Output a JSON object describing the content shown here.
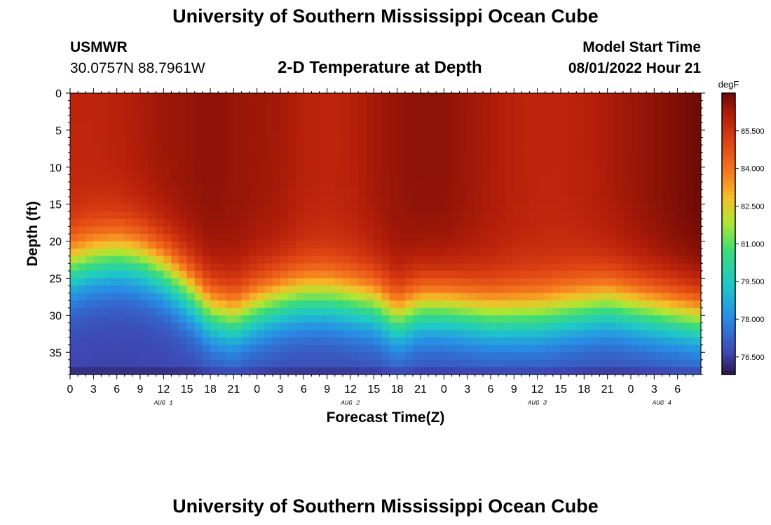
{
  "page": {
    "title": "University of Southern Mississippi Ocean Cube",
    "title_repeat": "University of Southern Mississippi Ocean Cube",
    "station": {
      "name": "USMWR",
      "coords": "30.0757N  88.7961W"
    },
    "model_start": {
      "label": "Model Start Time",
      "value": "08/01/2022 Hour 21"
    }
  },
  "chart_data": {
    "type": "heatmap",
    "title": "2-D Temperature at Depth",
    "xlabel": "Forecast Time(Z)",
    "ylabel": "Depth (ft)",
    "x_range": [
      0,
      81
    ],
    "y_range": [
      0,
      38
    ],
    "y_ticks": [
      "0",
      "5",
      "10",
      "15",
      "20",
      "25",
      "30",
      "35"
    ],
    "y_tick_values": [
      0,
      5,
      10,
      15,
      20,
      25,
      30,
      35
    ],
    "x_ticks": [
      "0",
      "3",
      "6",
      "9",
      "12",
      "15",
      "18",
      "21",
      "0",
      "3",
      "6",
      "9",
      "12",
      "15",
      "18",
      "21",
      "0",
      "3",
      "6",
      "9",
      "12",
      "15",
      "18",
      "21",
      "0",
      "3",
      "6"
    ],
    "date_labels": [
      {
        "label": "AUG 1",
        "hour": 12
      },
      {
        "label": "AUG 2",
        "hour": 36
      },
      {
        "label": "AUG 3",
        "hour": 60
      },
      {
        "label": "AUG 4",
        "hour": 76
      }
    ],
    "colorbar": {
      "unit": "degF",
      "min": 75.8,
      "max": 87.0,
      "tick_labels": [
        "85.500",
        "84.000",
        "82.500",
        "81.000",
        "79.500",
        "78.000",
        "76.500"
      ],
      "tick_values": [
        85.5,
        84.0,
        82.5,
        81.0,
        79.5,
        78.0,
        76.5
      ]
    },
    "thermocline_depth_ft": {
      "hours": [
        0,
        3,
        6,
        9,
        12,
        15,
        18,
        21,
        24,
        27,
        30,
        33,
        36,
        39,
        42,
        45,
        48,
        51,
        54,
        57,
        60,
        63,
        66,
        69,
        72,
        75,
        78,
        81
      ],
      "depth": [
        23.5,
        22.5,
        22.0,
        22.5,
        24.0,
        26.5,
        29.5,
        30.5,
        29.0,
        28.0,
        27.5,
        27.5,
        28.0,
        28.5,
        30.5,
        29.0,
        29.0,
        29.5,
        30.0,
        30.0,
        30.0,
        29.5,
        29.0,
        28.5,
        29.0,
        29.5,
        30.0,
        30.5
      ]
    },
    "surface_temp_degF": {
      "hours": [
        0,
        3,
        6,
        9,
        12,
        15,
        18,
        21,
        24,
        27,
        30,
        33,
        36,
        39,
        42,
        45,
        48,
        51,
        54,
        57,
        60,
        63,
        66,
        69,
        72,
        75,
        78,
        81
      ],
      "temp": [
        85.9,
        85.9,
        86.0,
        86.2,
        86.4,
        86.5,
        86.6,
        86.5,
        86.4,
        86.3,
        86.0,
        85.9,
        86.0,
        86.3,
        86.5,
        86.6,
        86.6,
        86.4,
        86.2,
        86.0,
        85.9,
        85.9,
        86.0,
        86.2,
        86.4,
        86.6,
        86.8,
        87.0
      ]
    }
  }
}
